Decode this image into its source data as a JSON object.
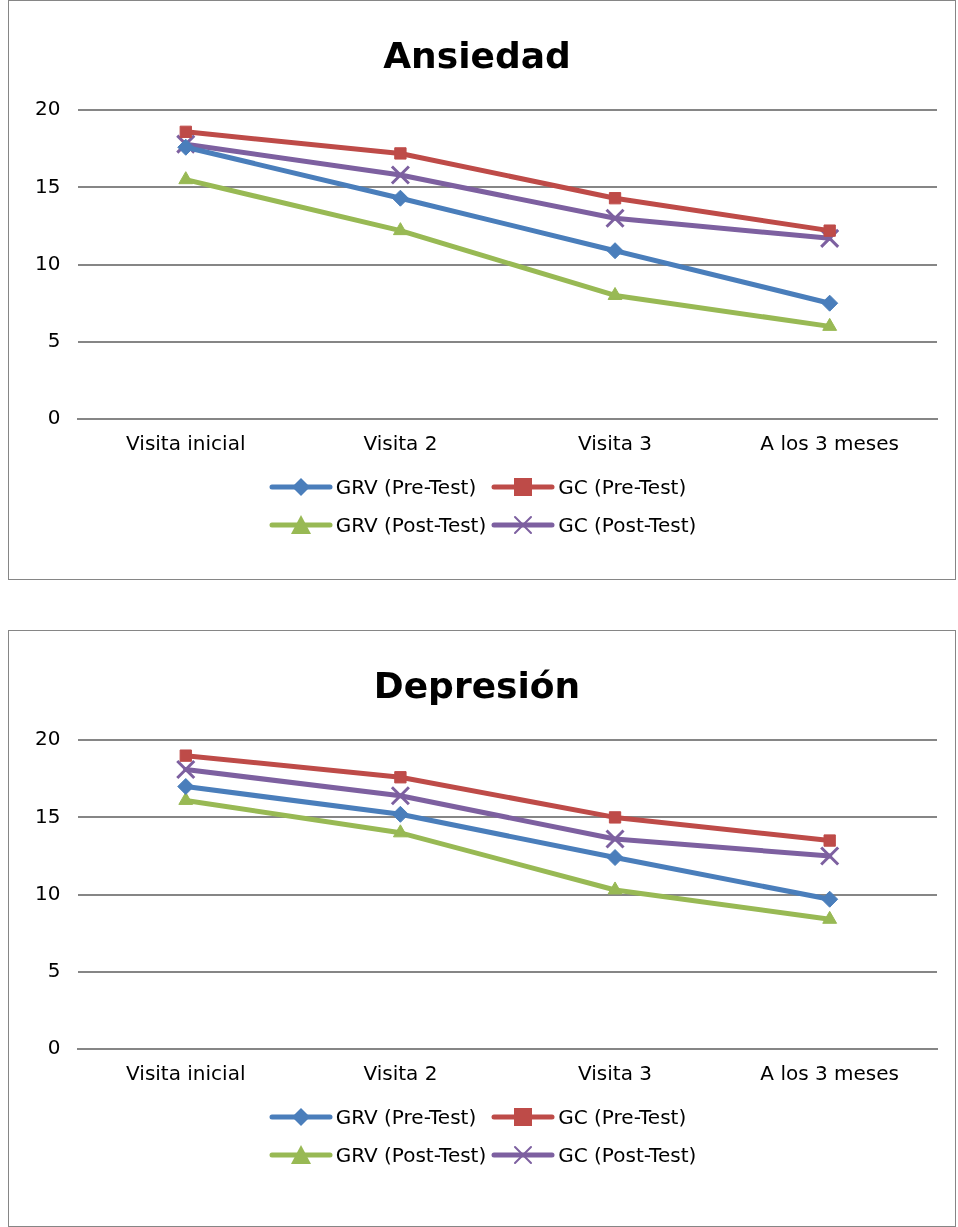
{
  "chart_data": [
    {
      "type": "line",
      "title": "Ansiedad",
      "categories": [
        "Visita inicial",
        "Visita 2",
        "Visita 3",
        "A los 3 meses"
      ],
      "ylim": [
        0,
        20
      ],
      "yticks": [
        0,
        5,
        10,
        15,
        20
      ],
      "grid": "y",
      "legend": "bottom",
      "series": [
        {
          "name": "GRV (Pre-Test)",
          "color": "#4a7ebb",
          "marker": "diamond",
          "values": [
            17.6,
            14.3,
            10.9,
            7.5
          ]
        },
        {
          "name": "GC (Pre-Test)",
          "color": "#be4b48",
          "marker": "square",
          "values": [
            18.6,
            17.2,
            14.3,
            12.2
          ]
        },
        {
          "name": "GRV (Post-Test)",
          "color": "#98b954",
          "marker": "triangle",
          "values": [
            15.5,
            12.2,
            8.0,
            6.0
          ]
        },
        {
          "name": "GC (Post-Test)",
          "color": "#7d60a0",
          "marker": "cross",
          "values": [
            17.8,
            15.8,
            13.0,
            11.7
          ]
        }
      ]
    },
    {
      "type": "line",
      "title": "Depresión",
      "categories": [
        "Visita inicial",
        "Visita 2",
        "Visita 3",
        "A los 3 meses"
      ],
      "ylim": [
        0,
        20
      ],
      "yticks": [
        0,
        5,
        10,
        15,
        20
      ],
      "grid": "y",
      "legend": "bottom",
      "series": [
        {
          "name": "GRV (Pre-Test)",
          "color": "#4a7ebb",
          "marker": "diamond",
          "values": [
            17.0,
            15.2,
            12.4,
            9.7
          ]
        },
        {
          "name": "GC (Pre-Test)",
          "color": "#be4b48",
          "marker": "square",
          "values": [
            19.0,
            17.6,
            15.0,
            13.5
          ]
        },
        {
          "name": "GRV (Post-Test)",
          "color": "#98b954",
          "marker": "triangle",
          "values": [
            16.1,
            14.0,
            10.3,
            8.4
          ]
        },
        {
          "name": "GC (Post-Test)",
          "color": "#7d60a0",
          "marker": "cross",
          "values": [
            18.1,
            16.4,
            13.6,
            12.5
          ]
        }
      ]
    }
  ]
}
